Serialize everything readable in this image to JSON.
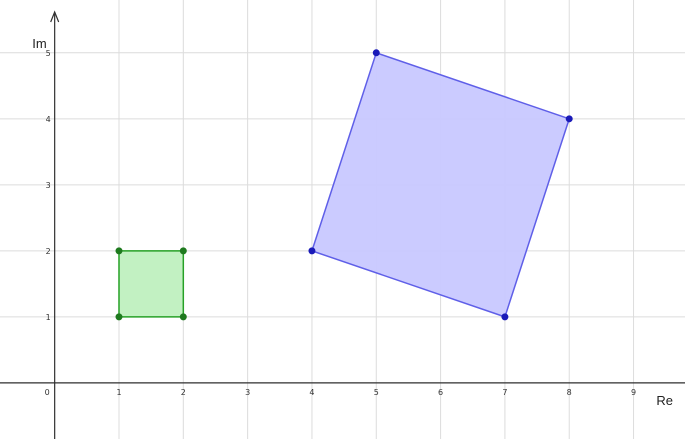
{
  "axes": {
    "x_label": "Re",
    "y_label": "Im",
    "x_ticks": [
      "0",
      "1",
      "2",
      "3",
      "4",
      "5",
      "6",
      "7",
      "8",
      "9"
    ],
    "y_ticks": [
      "1",
      "2",
      "3",
      "4",
      "5"
    ],
    "x_range": [
      -0.85,
      9.8
    ],
    "y_range": [
      -0.85,
      5.8
    ],
    "grid": true
  },
  "shapes": [
    {
      "name": "small-square",
      "vertices": [
        [
          1,
          1
        ],
        [
          2,
          1
        ],
        [
          2,
          2
        ],
        [
          1,
          2
        ]
      ],
      "fill": "#bff0bf",
      "stroke": "#27a127",
      "point_color": "#1e7a1e"
    },
    {
      "name": "large-square",
      "vertices": [
        [
          4,
          2
        ],
        [
          5,
          5
        ],
        [
          8,
          4
        ],
        [
          7,
          1
        ]
      ],
      "fill": "#c8c8ff",
      "stroke": "#5f5fe8",
      "point_color": "#1a1ab8"
    }
  ],
  "colors": {
    "grid": "#dcdcdc",
    "axis": "#2f2f2f",
    "background": "#ffffff"
  }
}
